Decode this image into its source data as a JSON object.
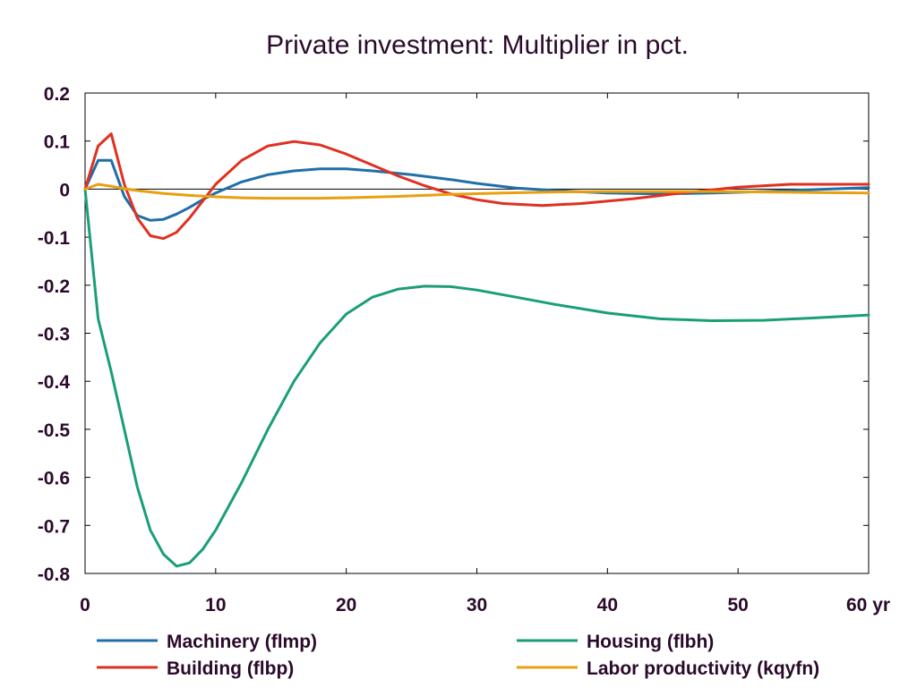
{
  "chart_data": {
    "type": "line",
    "title": "Private investment: Multiplier in pct.",
    "xlabel": "",
    "ylabel": "",
    "xunit": "yr",
    "xlim": [
      0,
      60
    ],
    "ylim": [
      -0.8,
      0.2
    ],
    "xticks": [
      0,
      10,
      20,
      30,
      40,
      50,
      60
    ],
    "xtick_labels": [
      "0",
      "10",
      "20",
      "30",
      "40",
      "50",
      "60 yr"
    ],
    "yticks": [
      0.2,
      0.1,
      0,
      -0.1,
      -0.2,
      -0.3,
      -0.4,
      -0.5,
      -0.6,
      -0.7,
      -0.8
    ],
    "ytick_labels": [
      "0.2",
      "0.1",
      "0",
      "-0.1",
      "-0.2",
      "-0.3",
      "-0.4",
      "-0.5",
      "-0.6",
      "-0.7",
      "-0.8"
    ],
    "grid": false,
    "zero_line": true,
    "legend_position": "bottom",
    "series": [
      {
        "name": "Machinery (flmp)",
        "color": "#1f6fa8",
        "x": [
          0,
          1,
          2,
          3,
          4,
          5,
          6,
          7,
          8,
          9,
          10,
          12,
          14,
          16,
          18,
          20,
          22,
          25,
          28,
          30,
          33,
          36,
          40,
          44,
          48,
          52,
          56,
          60
        ],
        "y": [
          0,
          0.06,
          0.06,
          -0.015,
          -0.055,
          -0.065,
          -0.063,
          -0.052,
          -0.038,
          -0.022,
          -0.008,
          0.015,
          0.03,
          0.038,
          0.042,
          0.042,
          0.038,
          0.03,
          0.02,
          0.012,
          0.002,
          -0.003,
          -0.008,
          -0.01,
          -0.008,
          -0.005,
          -0.001,
          0.003
        ]
      },
      {
        "name": "Building (flbp)",
        "color": "#e03020",
        "x": [
          0,
          1,
          2,
          3,
          4,
          5,
          6,
          7,
          8,
          9,
          10,
          12,
          14,
          16,
          18,
          20,
          22,
          24,
          26,
          28,
          30,
          32,
          35,
          38,
          42,
          46,
          50,
          54,
          60
        ],
        "y": [
          0,
          0.09,
          0.115,
          0.01,
          -0.06,
          -0.097,
          -0.103,
          -0.09,
          -0.06,
          -0.025,
          0.01,
          0.06,
          0.09,
          0.099,
          0.092,
          0.073,
          0.05,
          0.027,
          0.007,
          -0.01,
          -0.022,
          -0.03,
          -0.034,
          -0.03,
          -0.02,
          -0.007,
          0.004,
          0.01,
          0.01
        ]
      },
      {
        "name": "Housing (flbh)",
        "color": "#1a9e78",
        "x": [
          0,
          1,
          2,
          3,
          4,
          5,
          6,
          7,
          8,
          9,
          10,
          12,
          14,
          16,
          18,
          20,
          22,
          24,
          26,
          28,
          30,
          33,
          36,
          40,
          44,
          48,
          52,
          56,
          60
        ],
        "y": [
          0,
          -0.27,
          -0.38,
          -0.5,
          -0.62,
          -0.71,
          -0.76,
          -0.785,
          -0.778,
          -0.75,
          -0.71,
          -0.61,
          -0.5,
          -0.4,
          -0.32,
          -0.26,
          -0.225,
          -0.208,
          -0.202,
          -0.203,
          -0.21,
          -0.225,
          -0.24,
          -0.258,
          -0.27,
          -0.274,
          -0.273,
          -0.268,
          -0.262
        ]
      },
      {
        "name": "Labor productivity (kqyfn)",
        "color": "#e8a010",
        "x": [
          0,
          1,
          2,
          3,
          4,
          5,
          6,
          8,
          10,
          12,
          14,
          16,
          18,
          20,
          24,
          28,
          32,
          36,
          40,
          44,
          48,
          52,
          56,
          60
        ],
        "y": [
          0,
          0.01,
          0.006,
          0.001,
          -0.003,
          -0.006,
          -0.009,
          -0.013,
          -0.016,
          -0.018,
          -0.019,
          -0.019,
          -0.019,
          -0.018,
          -0.015,
          -0.011,
          -0.008,
          -0.006,
          -0.005,
          -0.005,
          -0.005,
          -0.006,
          -0.007,
          -0.008
        ]
      }
    ]
  }
}
